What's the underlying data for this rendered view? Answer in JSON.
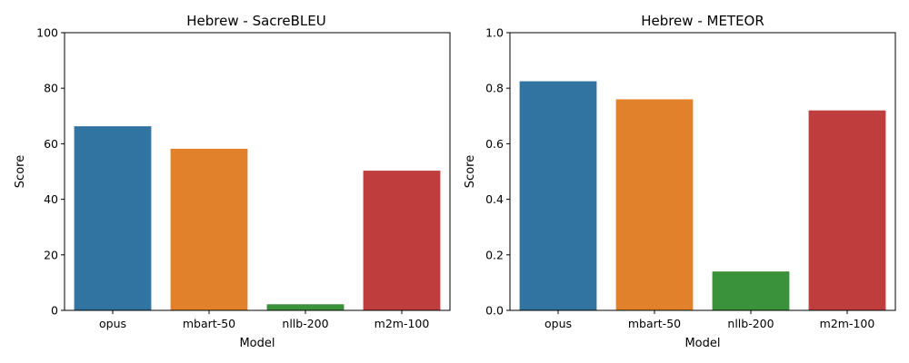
{
  "chart_data": [
    {
      "type": "bar",
      "title": "Hebrew - SacreBLEU",
      "xlabel": "Model",
      "ylabel": "Score",
      "categories": [
        "opus",
        "mbart-50",
        "nllb-200",
        "m2m-100"
      ],
      "values": [
        66.3,
        58.2,
        2.2,
        50.3
      ],
      "ylim": [
        0,
        100
      ],
      "yticks": [
        "0",
        "20",
        "40",
        "60",
        "80",
        "100"
      ],
      "colors": [
        "#3274a1",
        "#e1812c",
        "#3a923a",
        "#c03d3e"
      ],
      "grid": false,
      "legend": "none"
    },
    {
      "type": "bar",
      "title": "Hebrew - METEOR",
      "xlabel": "Model",
      "ylabel": "Score",
      "categories": [
        "opus",
        "mbart-50",
        "nllb-200",
        "m2m-100"
      ],
      "values": [
        0.825,
        0.76,
        0.14,
        0.72
      ],
      "ylim": [
        0,
        1.0
      ],
      "yticks": [
        "0.0",
        "0.2",
        "0.4",
        "0.6",
        "0.8",
        "1.0"
      ],
      "colors": [
        "#3274a1",
        "#e1812c",
        "#3a923a",
        "#c03d3e"
      ],
      "grid": false,
      "legend": "none"
    }
  ]
}
